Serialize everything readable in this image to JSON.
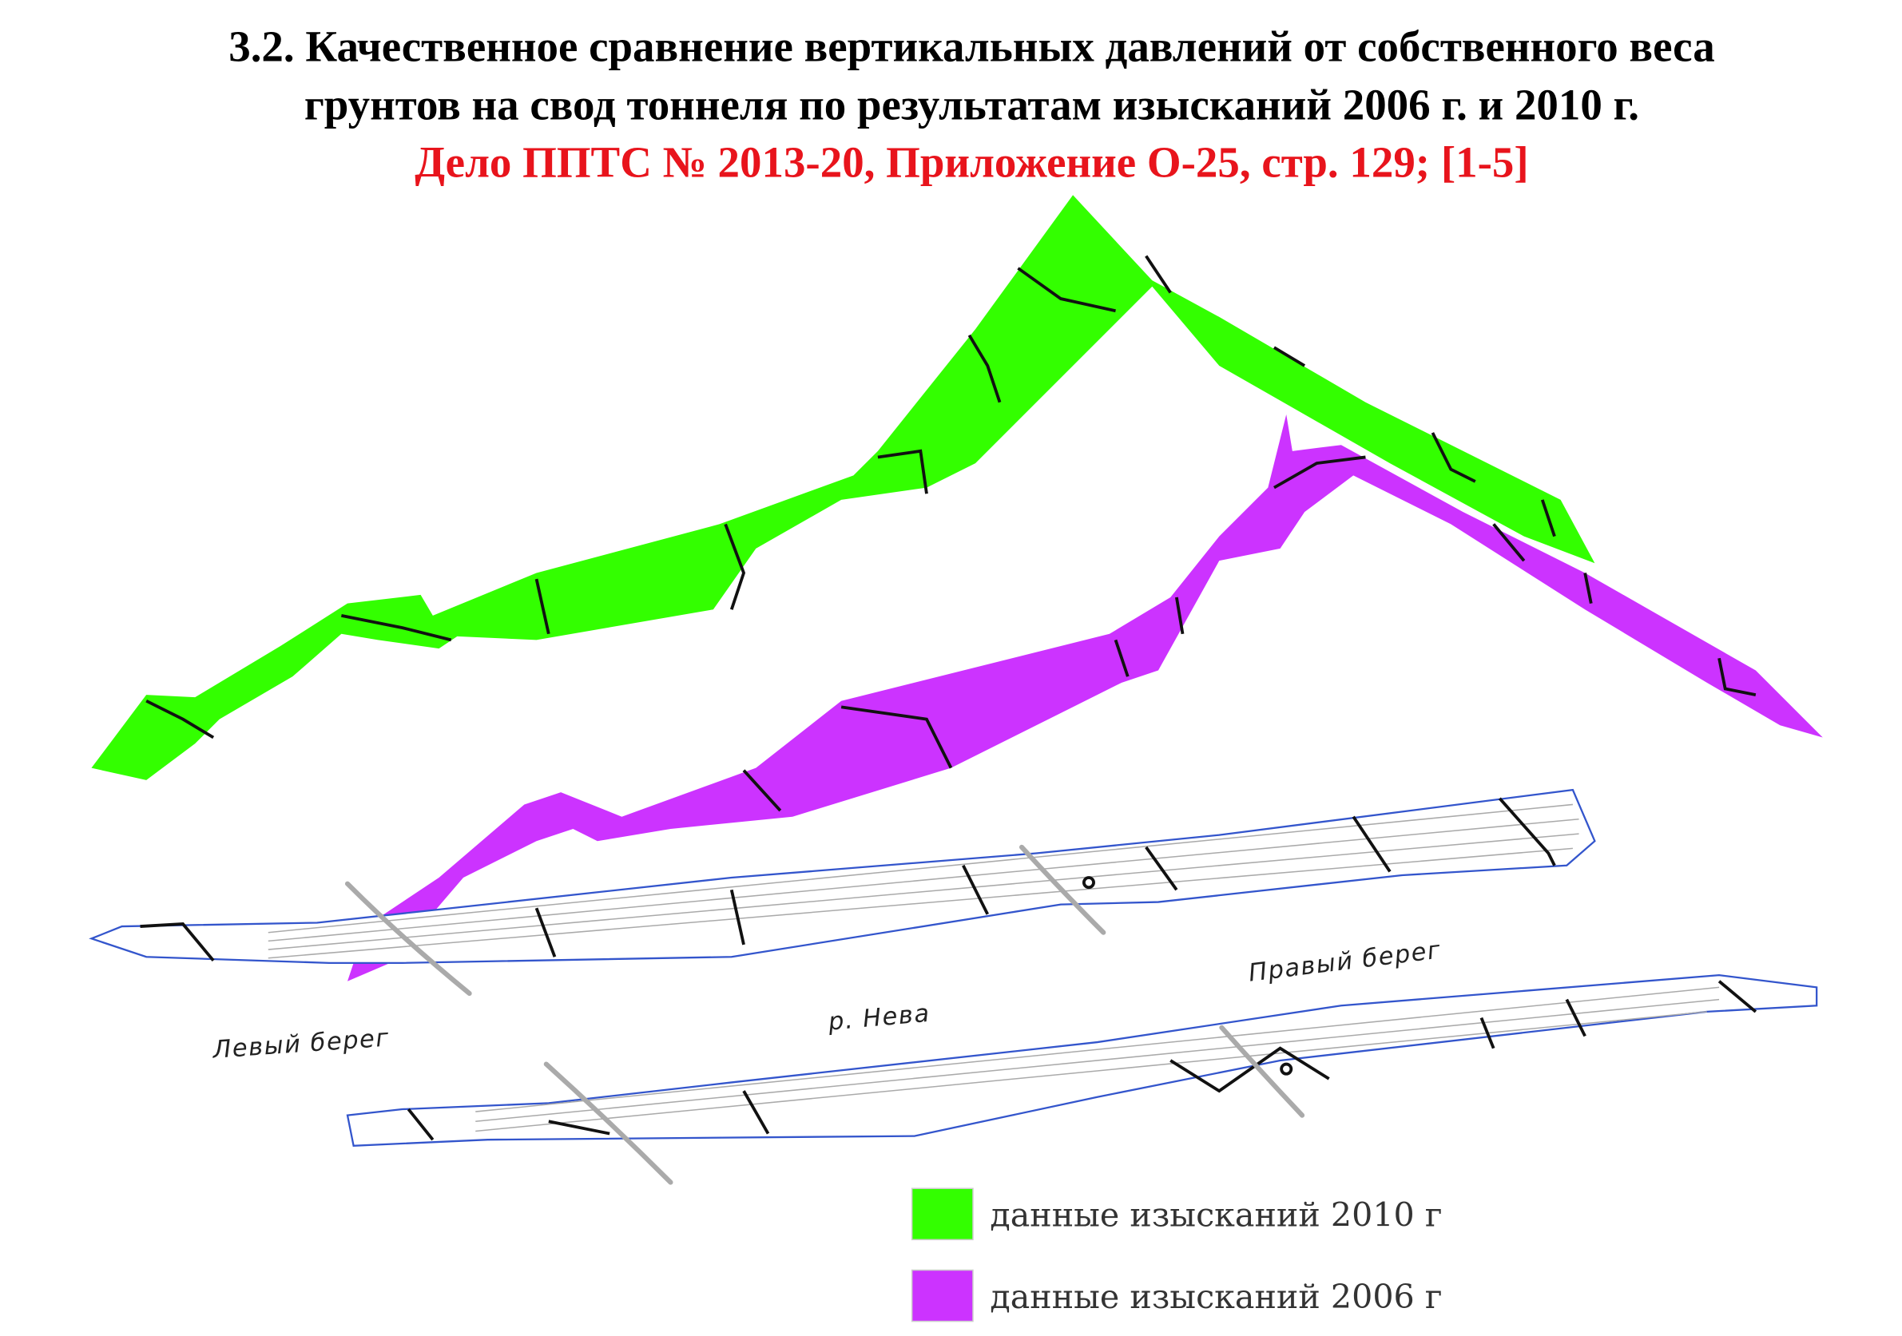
{
  "header": {
    "title_line1": "3.2. Качественное сравнение вертикальных давлений от собственного веса",
    "title_line2": "грунтов на свод тоннеля по результатам изысканий 2006 г. и 2010 г.",
    "reference": "Дело ППТС № 2013-20, Приложение О-25, стр. 129; [1-5]"
  },
  "labels": {
    "left_bank": "Левый берег",
    "river": "р. Нева",
    "right_bank": "Правый берег"
  },
  "legend": {
    "items": [
      {
        "label": "данные изысканий 2010 г",
        "color": "#33ff00"
      },
      {
        "label": "данные изысканий 2006 г",
        "color": "#cc33ff"
      }
    ]
  }
}
